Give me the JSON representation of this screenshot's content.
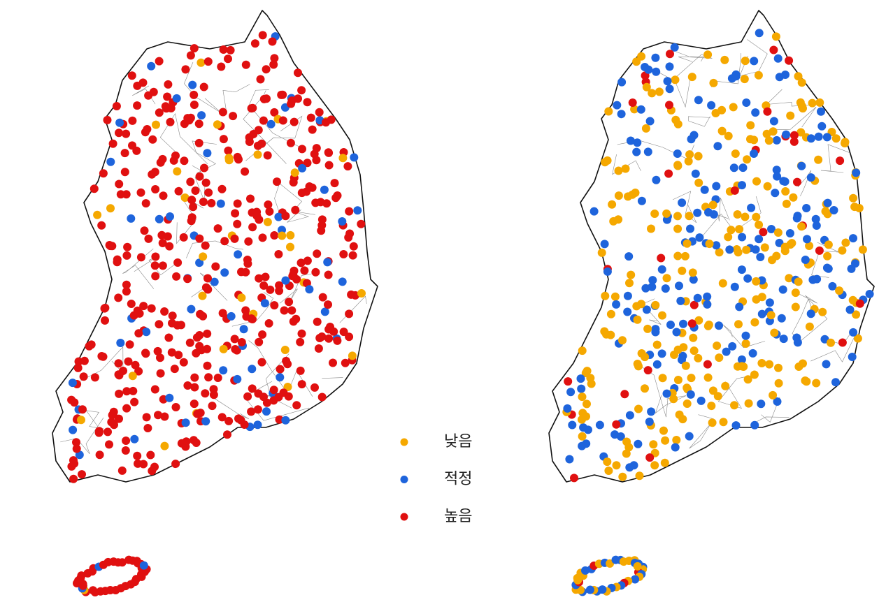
{
  "legend": [
    {
      "label": "낮음",
      "color": "#f5a800"
    },
    {
      "label": "적정",
      "color": "#1e64dc"
    },
    {
      "label": "높음",
      "color": "#e01010"
    }
  ]
}
